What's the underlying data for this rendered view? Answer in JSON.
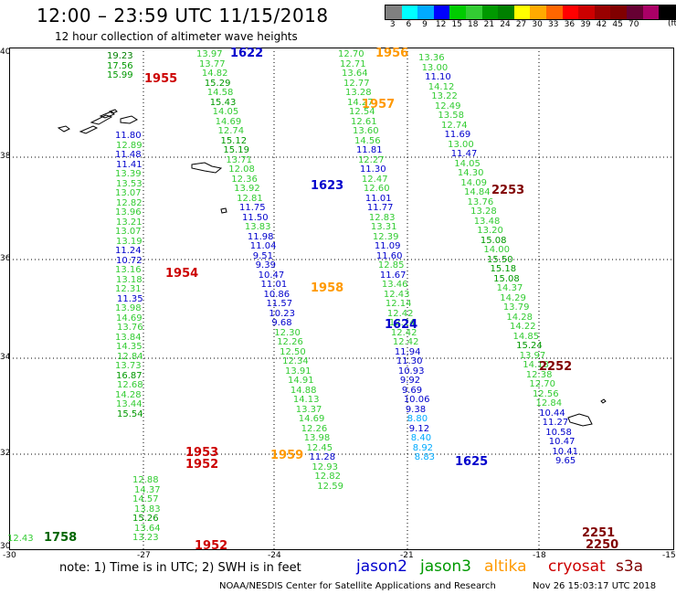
{
  "title": "12:00 – 23:59 UTC 11/15/2018",
  "subtitle": "12 hour collection of altimeter wave heights",
  "legend": {
    "colors": [
      "#808080",
      "#00ffff",
      "#00aaff",
      "#0000ff",
      "#00cc00",
      "#33cc33",
      "#009900",
      "#008000",
      "#ffff00",
      "#ffaa00",
      "#ff6600",
      "#ff0000",
      "#cc0000",
      "#990000",
      "#800000",
      "#660033",
      "#aa0066",
      "#000000"
    ],
    "labels": [
      "3",
      "6",
      "9",
      "12",
      "15",
      "18",
      "21",
      "24",
      "27",
      "30",
      "33",
      "36",
      "39",
      "42",
      "45",
      "70"
    ],
    "unit": "(ft)"
  },
  "axes": {
    "y_ticks": [
      "40",
      "38",
      "36",
      "34",
      "32",
      "30"
    ],
    "x_ticks": [
      "-30",
      "-27",
      "-24",
      "-21",
      "-18",
      "-15"
    ]
  },
  "tracks": [
    {
      "pass": "cryosat",
      "time": "1955",
      "values": [
        "19.23",
        "17.56",
        "15.99"
      ]
    },
    {
      "pass": "jason2",
      "time": "1955 cont",
      "values": [
        "11.80",
        "12.89",
        "11.48",
        "11.41",
        "13.39",
        "13.53",
        "13.07",
        "12.82",
        "13.96",
        "13.21",
        "13.07",
        "13.19",
        "11.24",
        "10.72",
        "13.16",
        "13.18",
        "12.31",
        "11.35",
        "13.98",
        "14.69",
        "13.76",
        "13.84",
        "14.35",
        "12.84",
        "13.73",
        "16.87",
        "12.68",
        "14.28",
        "13.44",
        "15.54"
      ]
    },
    {
      "pass": "jason2b",
      "time": "1952",
      "values": [
        "12.88",
        "14.37",
        "14.57",
        "13.83",
        "15.26",
        "13.64",
        "13.23"
      ]
    },
    {
      "pass": "jason3",
      "time": "1622",
      "values": [
        "13.97",
        "13.77",
        "14.82",
        "15.29",
        "14.58",
        "15.43",
        "14.05",
        "14.69",
        "12.74",
        "15.12",
        "15.19",
        "13.71",
        "12.08",
        "12.36",
        "13.92",
        "12.81",
        "11.75",
        "11.50",
        "13.83",
        "11.98",
        "11.04",
        "9.51",
        "9.39",
        "10.47",
        "11.01",
        "10.86",
        "11.57",
        "10.23",
        "9.68",
        "12.30",
        "12.26",
        "12.50",
        "12.34",
        "13.91",
        "14.91",
        "14.88",
        "14.13",
        "13.37",
        "14.69",
        "12.26",
        "13.98",
        "12.45",
        "11.28",
        "12.93",
        "12.82",
        "12.59"
      ]
    },
    {
      "pass": "altika",
      "time": "1956",
      "values": [
        "12.70",
        "12.71",
        "13.64",
        "12.77",
        "13.28",
        "14.27",
        "12.54",
        "12.61",
        "13.60",
        "14.56",
        "11.81",
        "12.27",
        "11.30",
        "12.47",
        "12.60",
        "11.01",
        "11.77",
        "12.83",
        "13.31",
        "12.39",
        "11.09",
        "11.60",
        "12.85",
        "11.67",
        "13.46",
        "12.43",
        "12.14",
        "12.42",
        "12.24",
        "12.42",
        "12.42",
        "11.94",
        "11.30",
        "10.93",
        "9.92",
        "9.69",
        "10.06",
        "9.38",
        "8.80",
        "9.12",
        "8.40",
        "8.92",
        "8.83"
      ]
    },
    {
      "pass": "jason3b",
      "time": "2253",
      "values": [
        "13.36",
        "13.00",
        "11.10",
        "14.12",
        "13.22",
        "12.49",
        "13.58",
        "12.74",
        "11.69",
        "13.00",
        "11.47",
        "14.05",
        "14.30",
        "14.09",
        "14.84",
        "13.76",
        "13.28",
        "13.48",
        "13.20",
        "15.08",
        "14.00",
        "15.50",
        "15.18",
        "15.08",
        "14.37",
        "14.29",
        "13.79",
        "14.28",
        "14.22",
        "14.85",
        "15.24",
        "13.97",
        "14.18",
        "12.38",
        "12.70",
        "12.56",
        "12.84",
        "10.44",
        "11.27",
        "10.58",
        "10.47",
        "10.41",
        "9.65"
      ]
    }
  ],
  "times": {
    "t1955": "1955",
    "t1622": "1622",
    "t1956": "1956",
    "t1957": "1957",
    "t1623": "1623",
    "t1954": "1954",
    "t1958": "1958",
    "t1624": "1624",
    "t1953": "1953",
    "t1952a": "1952",
    "t1959": "1959",
    "t1625": "1625",
    "t1758": "1758",
    "t1952b": "1952",
    "t2253": "2253",
    "t2252": "2252",
    "t2251": "2251",
    "t2250": "2250"
  },
  "extra_values": {
    "v1243": "12.43"
  },
  "note": "note:  1) Time is in UTC;  2) SWH is in feet",
  "satellites": {
    "jason2": "jason2",
    "jason3": "jason3",
    "altika": "altika",
    "cryosat": "cryosat",
    "s3a": "s3a"
  },
  "credit": "NOAA/NESDIS Center for Satellite Applications and Research",
  "stamp": "Nov 26 15:03:17 UTC 2018"
}
